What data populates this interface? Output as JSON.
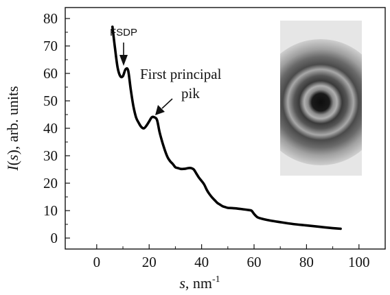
{
  "chart_data": {
    "type": "line",
    "title": "",
    "xlabel": {
      "var": "s",
      "rest": ", nm",
      "sup": "-1"
    },
    "ylabel": {
      "prefix": "I(",
      "var": "s",
      "suffix": "), arb. units"
    },
    "xlim": [
      -12,
      110
    ],
    "ylim": [
      -4,
      84
    ],
    "xticks": [
      0,
      20,
      40,
      60,
      80,
      100
    ],
    "yticks": [
      0,
      10,
      20,
      30,
      40,
      50,
      60,
      70,
      80
    ],
    "grid": false,
    "legend": "none",
    "series": [
      {
        "color": "#000000",
        "x": [
          6,
          7,
          8,
          9,
          10,
          11,
          12,
          13,
          14,
          15,
          16,
          17,
          18,
          19,
          20,
          21,
          22,
          23,
          24,
          25,
          26,
          27,
          28,
          29,
          30,
          31,
          32,
          33,
          34,
          35,
          36,
          37,
          38,
          39,
          40,
          41,
          42,
          43,
          44,
          45,
          46,
          47,
          48,
          49,
          50,
          52,
          55,
          58,
          59,
          60,
          61,
          62,
          65,
          70,
          75,
          80,
          85,
          90,
          93
        ],
        "y": [
          77,
          69,
          62,
          59,
          59,
          61.5,
          61,
          54,
          48,
          44,
          42,
          40.5,
          40,
          41,
          42.5,
          44,
          44,
          43,
          38.5,
          35,
          32,
          29.5,
          28,
          27,
          25.8,
          25.5,
          25.2,
          25.2,
          25.3,
          25.5,
          25.5,
          25,
          23.5,
          22,
          20.8,
          19.5,
          17.5,
          16,
          14.8,
          13.8,
          12.8,
          12.2,
          11.6,
          11.3,
          11,
          10.9,
          10.6,
          10.2,
          10,
          8.8,
          7.8,
          7.3,
          6.6,
          5.8,
          5.1,
          4.6,
          4.1,
          3.6,
          3.4
        ]
      }
    ],
    "annotations": [
      {
        "text": "FSDP",
        "x": 12,
        "y": 62
      },
      {
        "text": "First principal",
        "line2": "pik",
        "x": 23,
        "y": 44
      }
    ]
  },
  "inset": {
    "colors": {
      "background": "#e6e6e6",
      "ring": "#2e2e2e",
      "center": "#111111"
    }
  }
}
